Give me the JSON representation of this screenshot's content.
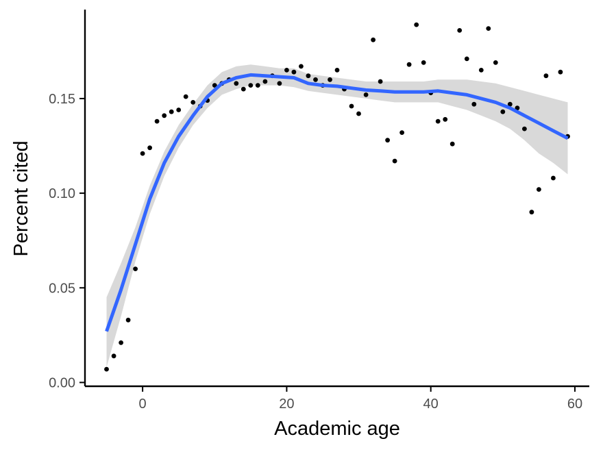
{
  "chart_data": {
    "type": "scatter",
    "xlabel": "Academic age",
    "ylabel": "Percent cited",
    "xlim": [
      -8,
      62
    ],
    "ylim": [
      -0.002,
      0.197
    ],
    "xticks": [
      0,
      20,
      40,
      60
    ],
    "xtick_labels": [
      "0",
      "20",
      "40",
      "60"
    ],
    "yticks": [
      0.0,
      0.05,
      0.1,
      0.15
    ],
    "ytick_labels": [
      "0.00",
      "0.05",
      "0.10",
      "0.15"
    ],
    "grid": false,
    "legend": "none",
    "colors": {
      "points": "#000000",
      "smooth_line": "#3366ff",
      "ribbon": "#d9d9d9",
      "axis": "#000000"
    },
    "series": [
      {
        "kind": "points",
        "x": [
          -5,
          -4,
          -3,
          -2,
          -1,
          0,
          1,
          2,
          3,
          4,
          5,
          6,
          7,
          8,
          9,
          10,
          11,
          12,
          13,
          14,
          15,
          16,
          17,
          18,
          19,
          20,
          21,
          22,
          23,
          24,
          25,
          26,
          27,
          28,
          29,
          30,
          31,
          32,
          33,
          34,
          35,
          36,
          37,
          38,
          39,
          40,
          41,
          42,
          43,
          44,
          45,
          46,
          47,
          48,
          49,
          50,
          51,
          52,
          53,
          54,
          55,
          56,
          57,
          58,
          59
        ],
        "y": [
          0.007,
          0.014,
          0.021,
          0.033,
          0.06,
          0.121,
          0.124,
          0.138,
          0.141,
          0.143,
          0.144,
          0.151,
          0.148,
          0.146,
          0.149,
          0.157,
          0.158,
          0.16,
          0.158,
          0.155,
          0.157,
          0.157,
          0.159,
          0.162,
          0.158,
          0.165,
          0.164,
          0.167,
          0.162,
          0.16,
          0.157,
          0.16,
          0.165,
          0.155,
          0.146,
          0.142,
          0.152,
          0.181,
          0.159,
          0.128,
          0.117,
          0.132,
          0.168,
          0.189,
          0.169,
          0.153,
          0.138,
          0.139,
          0.126,
          0.186,
          0.171,
          0.147,
          0.165,
          0.187,
          0.169,
          0.143,
          0.147,
          0.145,
          0.134,
          0.09,
          0.102,
          0.162,
          0.108,
          0.164,
          0.13
        ]
      },
      {
        "kind": "smooth",
        "x": [
          -5,
          -3,
          -1,
          1,
          3,
          5,
          7,
          9,
          11,
          13,
          15,
          17,
          19,
          21,
          23,
          25,
          27,
          29,
          31,
          33,
          35,
          37,
          39,
          41,
          43,
          45,
          47,
          49,
          51,
          53,
          55,
          57,
          59
        ],
        "y": [
          0.027,
          0.049,
          0.073,
          0.097,
          0.116,
          0.13,
          0.141,
          0.151,
          0.158,
          0.161,
          0.1625,
          0.162,
          0.1615,
          0.161,
          0.158,
          0.157,
          0.1565,
          0.1555,
          0.1545,
          0.154,
          0.1535,
          0.1535,
          0.1535,
          0.154,
          0.153,
          0.152,
          0.15,
          0.148,
          0.145,
          0.141,
          0.137,
          0.133,
          0.129
        ],
        "lower": [
          0.008,
          0.035,
          0.064,
          0.089,
          0.109,
          0.124,
          0.136,
          0.145,
          0.152,
          0.155,
          0.157,
          0.157,
          0.157,
          0.156,
          0.154,
          0.153,
          0.152,
          0.151,
          0.15,
          0.149,
          0.148,
          0.148,
          0.148,
          0.148,
          0.146,
          0.144,
          0.141,
          0.138,
          0.134,
          0.128,
          0.121,
          0.116,
          0.11
        ],
        "upper": [
          0.045,
          0.063,
          0.082,
          0.104,
          0.122,
          0.136,
          0.147,
          0.157,
          0.164,
          0.167,
          0.168,
          0.167,
          0.166,
          0.166,
          0.163,
          0.162,
          0.161,
          0.16,
          0.159,
          0.159,
          0.159,
          0.159,
          0.159,
          0.16,
          0.16,
          0.16,
          0.159,
          0.158,
          0.156,
          0.154,
          0.152,
          0.15,
          0.148
        ]
      }
    ]
  }
}
